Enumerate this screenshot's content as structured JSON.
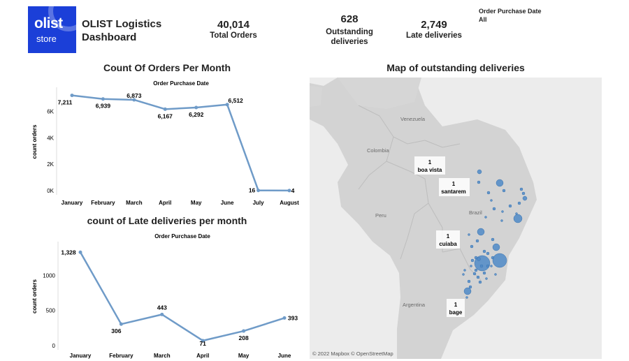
{
  "logo": {
    "line1": "olist",
    "line2": "store",
    "color": "#1b3fd8"
  },
  "header": {
    "title": "OLIST Logistics Dashboard",
    "kpis": [
      {
        "value": "40,014",
        "label": "Total Orders"
      },
      {
        "value": "628",
        "label": "Outstanding deliveries"
      },
      {
        "value": "2,749",
        "label": "Late deliveries"
      }
    ],
    "filter": {
      "label": "Order Purchase Date",
      "value": "All"
    }
  },
  "chart_data": [
    {
      "type": "line",
      "title": "Count Of Orders Per Month",
      "subtitle": "Order Purchase Date",
      "ylabel": "count orders",
      "xlabel": "",
      "categories": [
        "January",
        "February",
        "March",
        "April",
        "May",
        "June",
        "July",
        "August"
      ],
      "values": [
        7211,
        6939,
        6873,
        6167,
        6292,
        6512,
        16,
        4
      ],
      "value_labels": [
        "7,211",
        "6,939",
        "6,873",
        "6,167",
        "6,292",
        "6,512",
        "16",
        "4"
      ],
      "ylim": [
        0,
        7400
      ],
      "yticks": [
        0,
        2000,
        4000,
        6000
      ],
      "ytick_labels": [
        "0K",
        "2K",
        "4K",
        "6K"
      ],
      "grid": false,
      "color": "#6f9bc8"
    },
    {
      "type": "line",
      "title": "count of Late deliveries per month",
      "subtitle": "Order Purchase Date",
      "ylabel": "count orders",
      "xlabel": "",
      "categories": [
        "January",
        "February",
        "March",
        "April",
        "May",
        "June"
      ],
      "values": [
        1328,
        306,
        443,
        71,
        208,
        393
      ],
      "value_labels": [
        "1,328",
        "306",
        "443",
        "71",
        "208",
        "393"
      ],
      "ylim": [
        0,
        1400
      ],
      "yticks": [
        0,
        500,
        1000
      ],
      "ytick_labels": [
        "0",
        "500",
        "1000"
      ],
      "grid": false,
      "color": "#6f9bc8"
    }
  ],
  "map": {
    "title": "Map of outstanding deliveries",
    "attribution": "© 2022 Mapbox © OpenStreetMap",
    "country_labels": [
      "Venezuela",
      "Colombia",
      "Brazil",
      "Peru",
      "Argentina"
    ],
    "city_labels": [
      {
        "count": "1",
        "name": "boa vista"
      },
      {
        "count": "1",
        "name": "santarem"
      },
      {
        "count": "1",
        "name": "cuiaba"
      },
      {
        "count": "1",
        "name": "bage"
      }
    ],
    "bubble_color": "#4f89c7"
  }
}
